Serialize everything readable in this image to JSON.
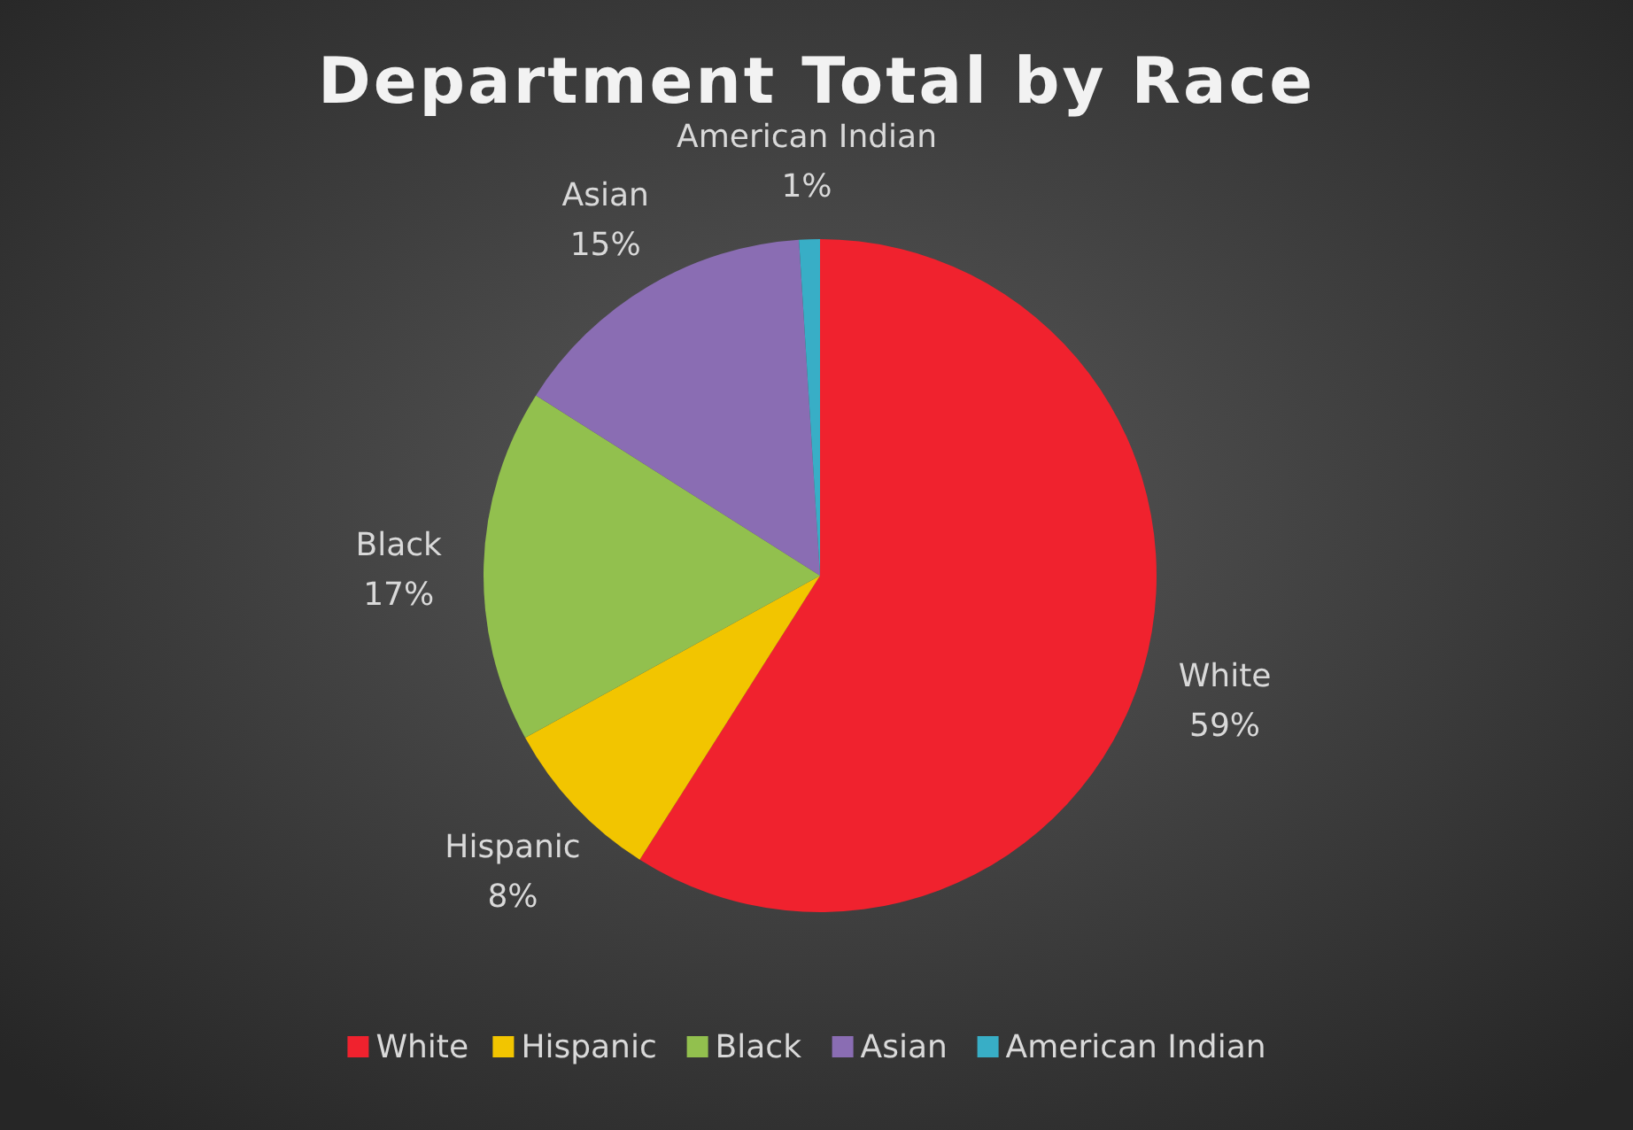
{
  "chart_data": {
    "type": "pie",
    "title": "Department Total by Race",
    "categories": [
      "White",
      "Hispanic",
      "Black",
      "Asian",
      "American Indian"
    ],
    "values": [
      59,
      8,
      17,
      15,
      1
    ],
    "colors": [
      "#f0222e",
      "#f2c500",
      "#92c04e",
      "#8a6db3",
      "#38aec6"
    ],
    "value_labels": [
      "59%",
      "8%",
      "17%",
      "15%",
      "1%"
    ],
    "legend": "bottom"
  }
}
